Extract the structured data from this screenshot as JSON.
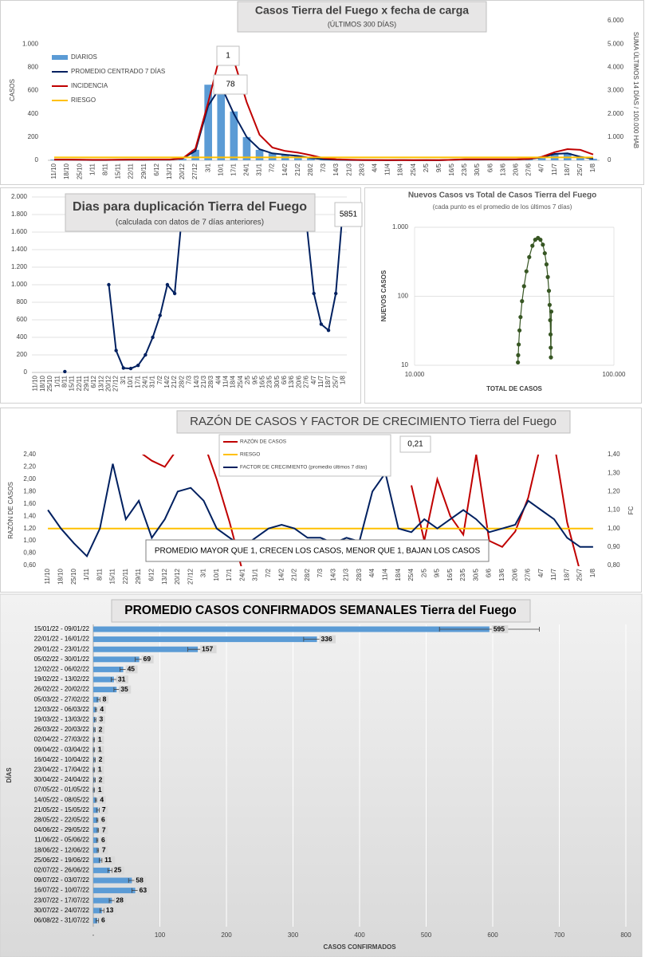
{
  "chart_data": [
    {
      "type": "combo",
      "title": "Casos Tierra del Fuego x fecha de carga",
      "subtitle": "(ÚLTIMOS 300 DÍAS)",
      "y_label": "CASOS",
      "y2_label": "SUMA ÚLTIMOS 14 DÍAS / 100.000 HAB",
      "categories": [
        "11/10",
        "18/10",
        "25/10",
        "1/11",
        "8/11",
        "15/11",
        "22/11",
        "29/11",
        "6/12",
        "13/12",
        "20/12",
        "27/12",
        "3/1",
        "10/1",
        "17/1",
        "24/1",
        "31/1",
        "7/2",
        "14/2",
        "21/2",
        "28/2",
        "7/3",
        "14/3",
        "21/3",
        "28/3",
        "4/4",
        "11/4",
        "18/4",
        "25/4",
        "2/5",
        "9/5",
        "16/5",
        "23/5",
        "30/5",
        "6/6",
        "13/6",
        "20/6",
        "27/6",
        "4/7",
        "11/7",
        "18/7",
        "25/7",
        "1/8"
      ],
      "series": [
        {
          "name": "DIARIOS",
          "kind": "bar",
          "color": "#5b9bd5",
          "values": [
            6,
            5,
            4,
            3,
            3,
            4,
            5,
            4,
            6,
            5,
            12,
            90,
            650,
            700,
            420,
            200,
            90,
            60,
            50,
            40,
            20,
            8,
            4,
            3,
            2,
            2,
            1,
            2,
            1,
            2,
            1,
            4,
            7,
            6,
            7,
            6,
            7,
            11,
            25,
            58,
            63,
            28,
            13
          ]
        },
        {
          "name": "PROMEDIO CENTRADO 7 DÍAS",
          "kind": "line",
          "color": "#002060",
          "values": [
            5,
            5,
            4,
            3,
            3,
            4,
            5,
            4,
            6,
            5,
            15,
            80,
            470,
            640,
            400,
            200,
            95,
            60,
            48,
            38,
            20,
            8,
            4,
            3,
            2,
            2,
            1,
            2,
            1,
            2,
            1,
            4,
            7,
            6,
            7,
            6,
            7,
            11,
            25,
            55,
            60,
            30,
            13
          ]
        },
        {
          "name": "INCIDENCIA",
          "kind": "line",
          "axis": "y2",
          "color": "#c00000",
          "values": [
            30,
            30,
            25,
            20,
            20,
            25,
            30,
            30,
            35,
            35,
            80,
            500,
            2500,
            4700,
            4300,
            2500,
            1100,
            550,
            400,
            330,
            220,
            90,
            40,
            25,
            15,
            12,
            10,
            10,
            10,
            10,
            10,
            20,
            40,
            45,
            45,
            45,
            45,
            60,
            150,
            350,
            480,
            450,
            250
          ]
        },
        {
          "name": "RIESGO",
          "kind": "line",
          "color": "#ffc000",
          "values": [
            25,
            25,
            25,
            25,
            25,
            25,
            25,
            25,
            25,
            25,
            25,
            25,
            25,
            25,
            25,
            25,
            25,
            25,
            25,
            25,
            25,
            25,
            25,
            25,
            25,
            25,
            25,
            25,
            25,
            25,
            25,
            25,
            25,
            25,
            25,
            25,
            25,
            25,
            25,
            25,
            25,
            25,
            25
          ]
        }
      ],
      "ylim": [
        0,
        1200
      ],
      "yticks": [
        0,
        200,
        400,
        600,
        800,
        {
          "value": 1000,
          "label": "1.000"
        }
      ],
      "y2lim": [
        0,
        6000
      ],
      "y2ticks": [
        0,
        {
          "value": 1000,
          "label": "1.000"
        },
        {
          "value": 2000,
          "label": "2.000"
        },
        {
          "value": 3000,
          "label": "3.000"
        },
        {
          "value": 4000,
          "label": "4.000"
        },
        {
          "value": 5000,
          "label": "5.000"
        },
        {
          "value": 6000,
          "label": "6.000"
        }
      ],
      "annotations": [
        "1",
        "78"
      ],
      "legend": "upper left"
    },
    {
      "type": "line",
      "title": "Dias para duplicación Tierra del Fuego",
      "subtitle": "(calculada con datos de 7 días anteriores)",
      "categories": [
        "11/10",
        "18/10",
        "25/10",
        "1/11",
        "8/11",
        "15/11",
        "22/11",
        "29/11",
        "6/12",
        "13/12",
        "20/12",
        "27/12",
        "3/1",
        "10/1",
        "17/1",
        "24/1",
        "31/1",
        "7/2",
        "14/2",
        "21/2",
        "28/2",
        "7/3",
        "14/3",
        "21/3",
        "28/3",
        "4/4",
        "11/4",
        "18/4",
        "25/4",
        "2/5",
        "9/5",
        "16/5",
        "23/5",
        "30/5",
        "6/6",
        "13/6",
        "20/6",
        "27/6",
        "4/7",
        "11/7",
        "18/7",
        "25/7",
        "1/8"
      ],
      "color": "#002060",
      "values": [
        null,
        null,
        null,
        null,
        10,
        null,
        null,
        null,
        null,
        null,
        1000,
        250,
        50,
        45,
        80,
        200,
        400,
        650,
        1000,
        900,
        1800,
        null,
        null,
        null,
        null,
        null,
        null,
        null,
        null,
        null,
        null,
        null,
        null,
        null,
        null,
        null,
        null,
        1700,
        900,
        550,
        480,
        900,
        1900
      ],
      "ylim": [
        0,
        2000
      ],
      "yticks": [
        0,
        200,
        400,
        600,
        800,
        {
          "value": 1000,
          "label": "1.000"
        },
        {
          "value": 1200,
          "label": "1.200"
        },
        {
          "value": 1400,
          "label": "1.400"
        },
        {
          "value": 1600,
          "label": "1.600"
        },
        {
          "value": 1800,
          "label": "1.800"
        },
        {
          "value": 2000,
          "label": "2.000"
        }
      ],
      "grid": true,
      "annotations": [
        "5851"
      ]
    },
    {
      "type": "scatter",
      "title": "Nuevos Casos vs Total de Casos Tierra del Fuego",
      "subtitle": "(cada punto es el promedio de los últimos 7 días)",
      "x_label": "TOTAL DE CASOS",
      "y_label": "NUEVOS CASOS",
      "color": "#375623",
      "log_x": true,
      "log_y": true,
      "x": [
        33000,
        33100,
        33300,
        33600,
        34000,
        34600,
        35400,
        36400,
        37600,
        39000,
        40300,
        41600,
        42800,
        44000,
        45000,
        45900,
        46600,
        47200,
        47600,
        47900,
        48100,
        48200,
        48300,
        48500
      ],
      "y": [
        11,
        14,
        20,
        32,
        50,
        85,
        140,
        230,
        370,
        540,
        660,
        700,
        660,
        560,
        420,
        290,
        190,
        120,
        75,
        45,
        28,
        18,
        13,
        60
      ],
      "xlim": [
        10000,
        100000
      ],
      "xticks": [
        {
          "value": 10000,
          "label": "10.000"
        },
        {
          "value": 100000,
          "label": "100.000"
        }
      ],
      "ylim": [
        10,
        1000
      ],
      "yticks": [
        10,
        100,
        {
          "value": 1000,
          "label": "1.000"
        }
      ],
      "grid": true
    },
    {
      "type": "line",
      "title": "RAZÓN DE CASOS Y FACTOR DE CRECIMIENTO Tierra del Fuego",
      "y_label": "RAZÓN DE CASOS",
      "y2_label": "FC",
      "categories": [
        "11/10",
        "18/10",
        "25/10",
        "1/11",
        "8/11",
        "15/11",
        "22/11",
        "29/11",
        "6/12",
        "13/12",
        "20/12",
        "27/12",
        "3/1",
        "10/1",
        "17/1",
        "24/1",
        "31/1",
        "7/2",
        "14/2",
        "21/2",
        "28/2",
        "7/3",
        "14/3",
        "21/3",
        "28/3",
        "4/4",
        "11/4",
        "18/4",
        "25/4",
        "2/5",
        "9/5",
        "16/5",
        "23/5",
        "30/5",
        "6/6",
        "13/6",
        "20/6",
        "27/6",
        "4/7",
        "11/7",
        "18/7",
        "25/7",
        "1/8"
      ],
      "series": [
        {
          "name": "RAZÓN DE CASOS",
          "color": "#c00000",
          "values": [
            null,
            null,
            null,
            null,
            null,
            null,
            2.6,
            2.45,
            2.3,
            2.2,
            2.5,
            2.45,
            2.6,
            2.0,
            1.3,
            0.5,
            null,
            null,
            null,
            null,
            null,
            null,
            null,
            null,
            null,
            null,
            null,
            null,
            1.9,
            1.0,
            2.0,
            1.4,
            1.1,
            2.4,
            1.0,
            0.9,
            1.15,
            1.7,
            2.6,
            2.6,
            1.3,
            0.5,
            null
          ]
        },
        {
          "name": "RIESGO",
          "color": "#ffc000",
          "values": [
            1.2,
            1.2,
            1.2,
            1.2,
            1.2,
            1.2,
            1.2,
            1.2,
            1.2,
            1.2,
            1.2,
            1.2,
            1.2,
            1.2,
            1.2,
            1.2,
            1.2,
            1.2,
            1.2,
            1.2,
            1.2,
            1.2,
            1.2,
            1.2,
            1.2,
            1.2,
            1.2,
            1.2,
            1.2,
            1.2,
            1.2,
            1.2,
            1.2,
            1.2,
            1.2,
            1.2,
            1.2,
            1.2,
            1.2,
            1.2,
            1.2,
            1.2,
            1.2
          ]
        },
        {
          "name": "FACTOR DE CRECIMIENTO (promedio últimos 7 días)",
          "axis": "y2",
          "color": "#002060",
          "values": [
            1.1,
            1.0,
            0.92,
            0.85,
            1.0,
            1.35,
            1.05,
            1.15,
            0.95,
            1.05,
            1.2,
            1.22,
            1.15,
            1.0,
            0.95,
            0.9,
            0.95,
            1.0,
            1.02,
            1.0,
            0.95,
            0.95,
            0.92,
            0.95,
            0.93,
            1.2,
            1.3,
            1.0,
            0.98,
            1.05,
            1.0,
            1.05,
            1.1,
            1.05,
            0.98,
            1.0,
            1.02,
            1.15,
            1.1,
            1.05,
            0.95,
            0.9,
            0.9
          ]
        }
      ],
      "ylim": [
        0.6,
        2.4
      ],
      "yticks": [
        {
          "value": 0.6,
          "label": "0,60"
        },
        {
          "value": 0.8,
          "label": "0,80"
        },
        {
          "value": 1.0,
          "label": "1,00"
        },
        {
          "value": 1.2,
          "label": "1,20"
        },
        {
          "value": 1.4,
          "label": "1,40"
        },
        {
          "value": 1.6,
          "label": "1,60"
        },
        {
          "value": 1.8,
          "label": "1,80"
        },
        {
          "value": 2.0,
          "label": "2,00"
        },
        {
          "value": 2.2,
          "label": "2,20"
        },
        {
          "value": 2.4,
          "label": "2,40"
        }
      ],
      "y2lim": [
        0.8,
        1.4
      ],
      "y2ticks": [
        {
          "value": 0.8,
          "label": "0,80"
        },
        {
          "value": 0.9,
          "label": "0,90"
        },
        {
          "value": 1.0,
          "label": "1,00"
        },
        {
          "value": 1.1,
          "label": "1,10"
        },
        {
          "value": 1.2,
          "label": "1,20"
        },
        {
          "value": 1.3,
          "label": "1,30"
        },
        {
          "value": 1.4,
          "label": "1,40"
        }
      ],
      "annotations": [
        "0,21",
        "PROMEDIO MAYOR QUE 1, CRECEN LOS CASOS, MENOR QUE 1, BAJAN LOS CASOS"
      ],
      "legend": "upper center"
    },
    {
      "type": "barh",
      "title": "PROMEDIO CASOS CONFIRMADOS SEMANALES Tierra del Fuego",
      "x_label": "CASOS CONFIRMADOS",
      "y_label": "DÍAS",
      "color": "#5b9bd5",
      "categories": [
        "15/01/22 - 09/01/22",
        "22/01/22 - 16/01/22",
        "29/01/22 - 23/01/22",
        "05/02/22 - 30/01/22",
        "12/02/22 - 06/02/22",
        "19/02/22 - 13/02/22",
        "26/02/22 - 20/02/22",
        "05/03/22 - 27/02/22",
        "12/03/22 - 06/03/22",
        "19/03/22 - 13/03/22",
        "26/03/22 - 20/03/22",
        "02/04/22 - 27/03/22",
        "09/04/22 - 03/04/22",
        "16/04/22 - 10/04/22",
        "23/04/22 - 17/04/22",
        "30/04/22 - 24/04/22",
        "07/05/22 - 01/05/22",
        "14/05/22 - 08/05/22",
        "21/05/22 - 15/05/22",
        "28/05/22 - 22/05/22",
        "04/06/22 - 29/05/22",
        "11/06/22 - 05/06/22",
        "18/06/22 - 12/06/22",
        "25/06/22 - 19/06/22",
        "02/07/22 - 26/06/22",
        "09/07/22 - 03/07/22",
        "16/07/22 - 10/07/22",
        "23/07/22 - 17/07/22",
        "30/07/22 - 24/07/22",
        "06/08/22 - 31/07/22"
      ],
      "values": [
        595,
        336,
        157,
        69,
        45,
        31,
        35,
        8,
        4,
        3,
        2,
        1,
        1,
        2,
        1,
        2,
        1,
        4,
        7,
        6,
        7,
        6,
        7,
        11,
        25,
        58,
        63,
        28,
        13,
        6
      ],
      "errors": [
        75,
        20,
        15,
        6,
        5,
        4,
        4,
        2,
        1,
        1,
        1,
        1,
        1,
        1,
        1,
        1,
        1,
        1,
        2,
        1,
        1,
        1,
        1,
        2,
        3,
        5,
        5,
        4,
        3,
        2
      ],
      "xlim": [
        0,
        800
      ],
      "xticks": [
        {
          "value": 0,
          "label": "-"
        },
        100,
        200,
        300,
        400,
        500,
        600,
        700,
        800
      ],
      "grid": true
    }
  ]
}
